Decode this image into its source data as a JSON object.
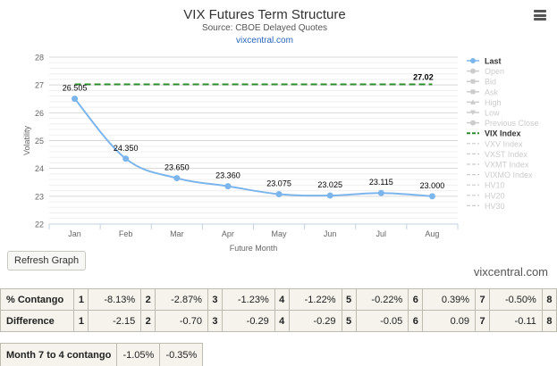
{
  "chart_data": {
    "type": "line",
    "title": "VIX Futures Term Structure",
    "subtitle": "Source: CBOE Delayed Quotes",
    "source_link": "vixcentral.com",
    "xlabel": "Future Month",
    "ylabel": "Volatility",
    "categories": [
      "Jan",
      "Feb",
      "Mar",
      "Apr",
      "May",
      "Jun",
      "Jul",
      "Aug"
    ],
    "ylim": [
      22,
      28
    ],
    "yticks": [
      22,
      23,
      24,
      25,
      26,
      27,
      28
    ],
    "grid": true,
    "series": [
      {
        "name": "Last",
        "color": "#7cb5ec",
        "values": [
          26.505,
          24.35,
          23.65,
          23.36,
          23.075,
          23.025,
          23.115,
          23.0
        ],
        "labels": [
          "26.505",
          "24.350",
          "23.650",
          "23.360",
          "23.075",
          "23.025",
          "23.115",
          "23.000"
        ]
      },
      {
        "name": "VIX Index",
        "color": "#2e8b2e",
        "style": "dashed",
        "value": 27.02,
        "label": "27.02"
      }
    ],
    "legend": {
      "position": "right",
      "items": [
        {
          "name": "Last",
          "active": true,
          "marker": "line-dot",
          "color": "#7cb5ec"
        },
        {
          "name": "Open",
          "active": false,
          "marker": "line-dot"
        },
        {
          "name": "Bid",
          "active": false,
          "marker": "line-square"
        },
        {
          "name": "Ask",
          "active": false,
          "marker": "line-square"
        },
        {
          "name": "High",
          "active": false,
          "marker": "line-triangle"
        },
        {
          "name": "Low",
          "active": false,
          "marker": "line-triangle-down"
        },
        {
          "name": "Previous Close",
          "active": false,
          "marker": "line-dot"
        },
        {
          "name": "VIX Index",
          "active": true,
          "marker": "dashed",
          "color": "#2e8b2e"
        },
        {
          "name": "VXV Index",
          "active": false,
          "marker": "dashed"
        },
        {
          "name": "VXST Index",
          "active": false,
          "marker": "dashed"
        },
        {
          "name": "VXMT Index",
          "active": false,
          "marker": "dashed"
        },
        {
          "name": "VIXMO Index",
          "active": false,
          "marker": "dashed"
        },
        {
          "name": "HV10",
          "active": false,
          "marker": "dashed"
        },
        {
          "name": "HV20",
          "active": false,
          "marker": "dashed"
        },
        {
          "name": "HV30",
          "active": false,
          "marker": "dashed"
        }
      ]
    }
  },
  "controls": {
    "menu_icon": "hamburger-menu-icon",
    "refresh_label": "Refresh Graph"
  },
  "footer": "vixcentral.com",
  "contango_table": {
    "rows": [
      {
        "label": "% Contango",
        "cells": [
          {
            "num": "1",
            "val": "-8.13%"
          },
          {
            "num": "2",
            "val": "-2.87%"
          },
          {
            "num": "3",
            "val": "-1.23%"
          },
          {
            "num": "4",
            "val": "-1.22%"
          },
          {
            "num": "5",
            "val": "-0.22%"
          },
          {
            "num": "6",
            "val": "0.39%"
          },
          {
            "num": "7",
            "val": "-0.50%"
          }
        ],
        "last_num": "8"
      },
      {
        "label": "Difference",
        "cells": [
          {
            "num": "1",
            "val": "-2.15"
          },
          {
            "num": "2",
            "val": "-0.70"
          },
          {
            "num": "3",
            "val": "-0.29"
          },
          {
            "num": "4",
            "val": "-0.29"
          },
          {
            "num": "5",
            "val": "-0.05"
          },
          {
            "num": "6",
            "val": "0.09"
          },
          {
            "num": "7",
            "val": "-0.11"
          }
        ],
        "last_num": "8"
      }
    ]
  },
  "month7_table": {
    "label": "Month 7 to 4 contango",
    "values": [
      "-1.05%",
      "-0.35%"
    ]
  }
}
